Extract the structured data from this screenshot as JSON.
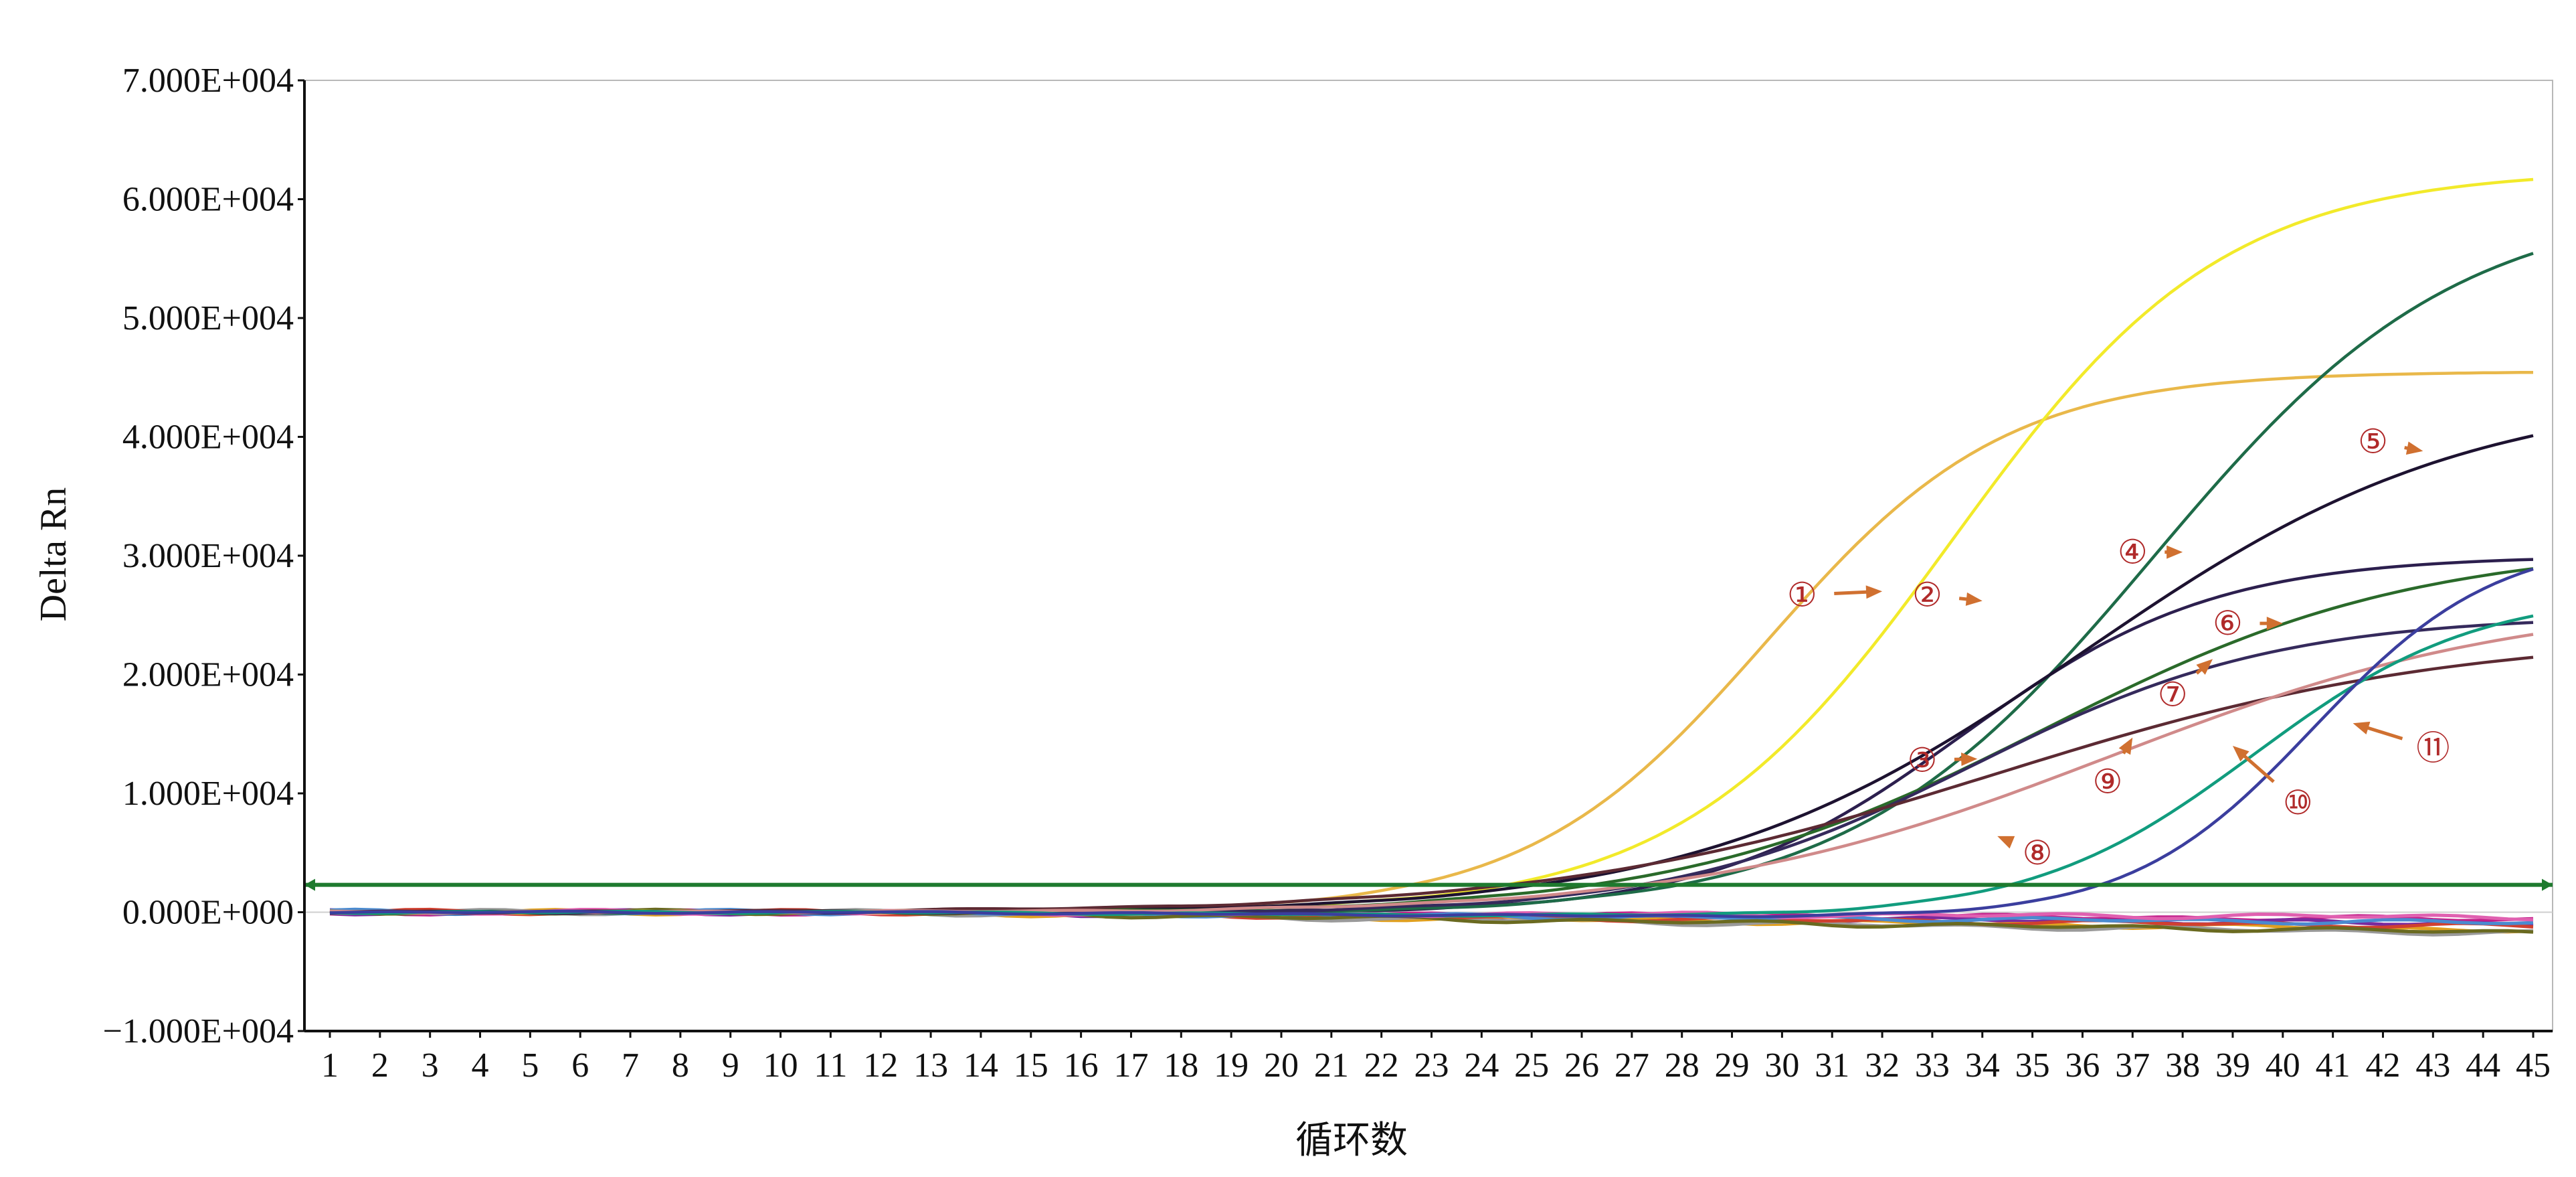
{
  "chart_data": {
    "type": "line",
    "title": "",
    "xlabel": "循环数",
    "ylabel": "Delta Rn",
    "xlim": [
      1,
      45
    ],
    "ylim": [
      -10000,
      70000
    ],
    "x_ticks": [
      "1",
      "2",
      "3",
      "4",
      "5",
      "6",
      "7",
      "8",
      "9",
      "10",
      "11",
      "12",
      "13",
      "14",
      "15",
      "16",
      "17",
      "18",
      "19",
      "20",
      "21",
      "22",
      "23",
      "24",
      "25",
      "26",
      "27",
      "28",
      "29",
      "30",
      "31",
      "32",
      "33",
      "34",
      "35",
      "36",
      "37",
      "38",
      "39",
      "40",
      "41",
      "42",
      "43",
      "44",
      "45"
    ],
    "y_ticks": [
      {
        "value": 70000,
        "label": "7.000E+004"
      },
      {
        "value": 60000,
        "label": "6.000E+004"
      },
      {
        "value": 50000,
        "label": "5.000E+004"
      },
      {
        "value": 40000,
        "label": "4.000E+004"
      },
      {
        "value": 30000,
        "label": "3.000E+004"
      },
      {
        "value": 20000,
        "label": "2.000E+004"
      },
      {
        "value": 10000,
        "label": "1.000E+004"
      },
      {
        "value": 0,
        "label": "0.000E+000"
      },
      {
        "value": -10000,
        "label": "−1.000E+004"
      }
    ],
    "threshold": {
      "value": 2300,
      "color": "#1e7a2e"
    },
    "grid": false,
    "series": [
      {
        "id": "1",
        "color": "#e9b84a",
        "max": 45500,
        "mid": 29.7,
        "k": 0.42,
        "baseEnd": 300
      },
      {
        "id": "2",
        "color": "#f2ea2a",
        "max": 62500,
        "mid": 33.4,
        "k": 0.37,
        "baseEnd": 200
      },
      {
        "id": "3",
        "color": "#2c1f4e",
        "max": 30000,
        "mid": 33.6,
        "k": 0.4,
        "baseEnd": -300
      },
      {
        "id": "4",
        "color": "#1e6b48",
        "max": 60000,
        "mid": 37.4,
        "k": 0.33,
        "baseEnd": -500
      },
      {
        "id": "5",
        "color": "#1d1230",
        "max": 44000,
        "mid": 36.0,
        "k": 0.26,
        "baseEnd": -400
      },
      {
        "id": "6",
        "color": "#2a6a2a",
        "max": 31000,
        "mid": 35.2,
        "k": 0.27,
        "baseEnd": -500
      },
      {
        "id": "7",
        "color": "#352a5c",
        "max": 25000,
        "mid": 33.8,
        "k": 0.33,
        "baseEnd": -500
      },
      {
        "id": "8",
        "color": "#5c2a33",
        "max": 23500,
        "mid": 34.2,
        "k": 0.22,
        "baseEnd": -600
      },
      {
        "id": "9",
        "color": "#d08a8a",
        "max": 26500,
        "mid": 36.5,
        "k": 0.24,
        "baseEnd": -600
      },
      {
        "id": "10",
        "color": "#119c7e",
        "max": 27000,
        "mid": 39.4,
        "k": 0.45,
        "baseEnd": -700
      },
      {
        "id": "11",
        "color": "#3b3e9e",
        "max": 31500,
        "mid": 40.6,
        "k": 0.55,
        "baseEnd": -700
      }
    ],
    "background_series": [
      {
        "color": "#c21f8a",
        "baseEnd": -600
      },
      {
        "color": "#7a2a9e",
        "baseEnd": -1000
      },
      {
        "color": "#e0a020",
        "baseEnd": -1500
      },
      {
        "color": "#9a9a9a",
        "baseEnd": -1800
      },
      {
        "color": "#d04030",
        "baseEnd": -1200
      },
      {
        "color": "#4a8ad0",
        "baseEnd": -900
      },
      {
        "color": "#6a6a20",
        "baseEnd": -1700
      },
      {
        "color": "#e060b0",
        "baseEnd": -400
      }
    ],
    "annotations": [
      {
        "label": "①",
        "cx": 30.4,
        "cy": 26700,
        "tx": 32.0,
        "ty": 27000
      },
      {
        "label": "②",
        "cx": 32.9,
        "cy": 26700,
        "tx": 34.0,
        "ty": 26200
      },
      {
        "label": "③",
        "cx": 32.8,
        "cy": 12800,
        "tx": 33.9,
        "ty": 12900
      },
      {
        "label": "④",
        "cx": 37.0,
        "cy": 30300,
        "tx": 38.0,
        "ty": 30300
      },
      {
        "label": "⑤",
        "cx": 41.8,
        "cy": 39600,
        "tx": 42.8,
        "ty": 38800
      },
      {
        "label": "⑥",
        "cx": 38.9,
        "cy": 24300,
        "tx": 40.0,
        "ty": 24300
      },
      {
        "label": "⑦",
        "cx": 37.8,
        "cy": 18300,
        "tx": 38.6,
        "ty": 21300
      },
      {
        "label": "⑧",
        "cx": 35.1,
        "cy": 5000,
        "tx": 34.3,
        "ty": 6400
      },
      {
        "label": "⑨",
        "cx": 36.5,
        "cy": 11000,
        "tx": 37.0,
        "ty": 14700
      },
      {
        "label": "⑩",
        "cx": 40.3,
        "cy": 9200,
        "tx": 39.0,
        "ty": 14000
      },
      {
        "label": "⑪",
        "cx": 43.0,
        "cy": 13800,
        "tx": 41.4,
        "ty": 15900
      }
    ]
  }
}
